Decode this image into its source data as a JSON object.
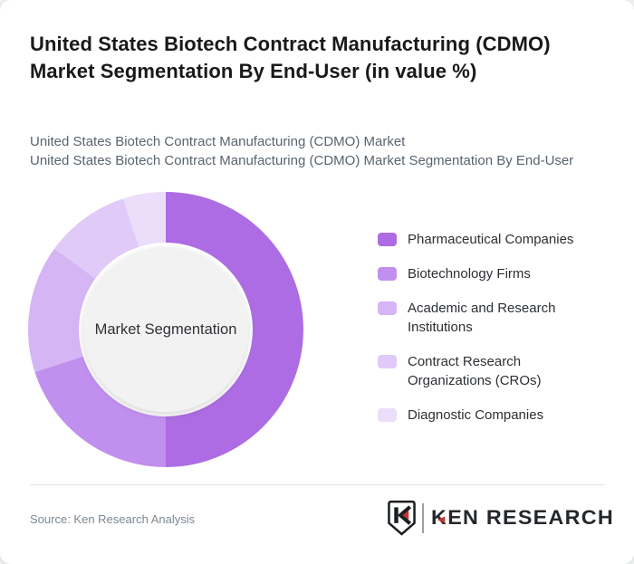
{
  "header": {
    "title": "United States Biotech Contract Manufacturing (CDMO) Market Segmentation By End-User (in value %)",
    "subtitle_line1": "United States Biotech Contract Manufacturing (CDMO) Market",
    "subtitle_line2": "United States Biotech Contract Manufacturing (CDMO) Market Segmentation By End-User"
  },
  "chart_data": {
    "type": "pie",
    "variant": "donut",
    "title": "United States Biotech Contract Manufacturing (CDMO) Market Segmentation By End-User (in value %)",
    "center_label": "Market Segmentation",
    "labels": [
      "Pharmaceutical Companies",
      "Biotechnology Firms",
      "Academic and Research Institutions",
      "Contract Research Organizations (CROs)",
      "Diagnostic Companies"
    ],
    "values": [
      50,
      20,
      15,
      10,
      5
    ],
    "unit": "%",
    "colors": [
      "#ad6ce3",
      "#c18fee",
      "#d5b5f4",
      "#e0caf8",
      "#ecdefa"
    ],
    "center_circle_color": "#f2f2f3",
    "legend_position": "right",
    "start_angle_deg": 0,
    "direction": "clockwise"
  },
  "footer": {
    "source": "Source: Ken Research Analysis",
    "logo": {
      "wordmark_k": "K",
      "arrow_icon": "◄",
      "wordmark_rest": "EN RESEARCH",
      "accent_red": "#c5342c",
      "ink": "#24282c"
    }
  }
}
